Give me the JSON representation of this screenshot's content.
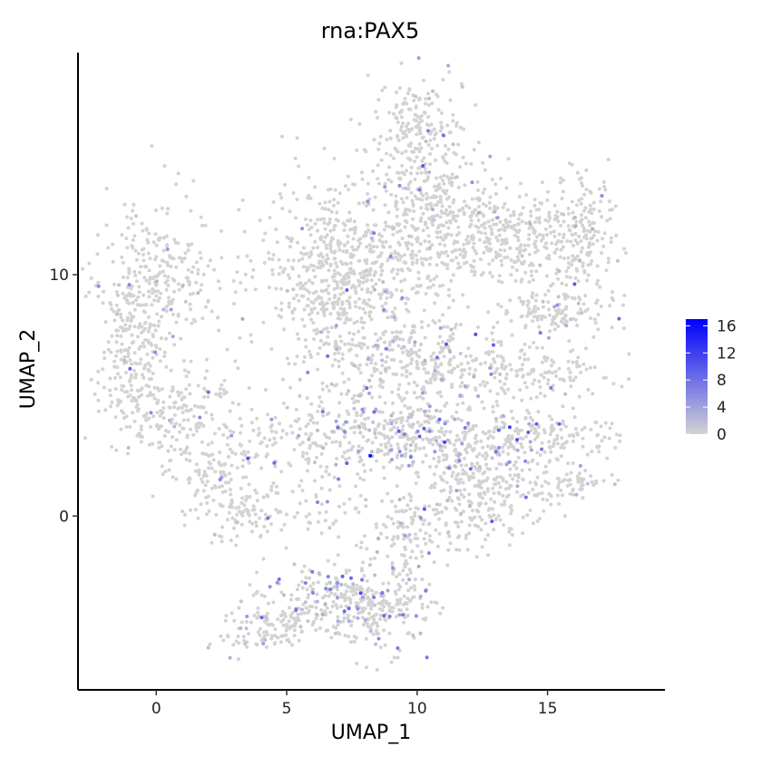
{
  "chart_data": {
    "type": "scatter",
    "title": "rna:PAX5",
    "xlabel": "UMAP_1",
    "ylabel": "UMAP_2",
    "xlim": [
      -3,
      19.5
    ],
    "ylim": [
      -7.2,
      19.2
    ],
    "x_ticks": [
      0,
      5,
      10,
      15
    ],
    "y_ticks": [
      0,
      10
    ],
    "grid": false,
    "legend_placement": "right",
    "colorbar": {
      "ticks": [
        0,
        4,
        8,
        12,
        16
      ],
      "min": 0,
      "max": 17,
      "low_color": "#d3d3d3",
      "high_color": "#0000ff"
    },
    "clusters": [
      {
        "cx": 0.1,
        "cy": 10.0,
        "sx": 1.3,
        "sy": 1.4,
        "n": 260,
        "expr": 0.03
      },
      {
        "cx": -0.9,
        "cy": 7.0,
        "sx": 0.6,
        "sy": 1.5,
        "n": 160,
        "expr": 0.03
      },
      {
        "cx": 0.5,
        "cy": 4.3,
        "sx": 1.3,
        "sy": 0.9,
        "n": 200,
        "expr": 0.05
      },
      {
        "cx": 2.3,
        "cy": 1.8,
        "sx": 1.1,
        "sy": 0.9,
        "n": 130,
        "expr": 0.03
      },
      {
        "cx": 3.4,
        "cy": 0.0,
        "sx": 0.8,
        "sy": 0.5,
        "n": 60,
        "expr": 0.02
      },
      {
        "cx": 6.3,
        "cy": 0.2,
        "sx": 1.6,
        "sy": 0.7,
        "n": 70,
        "expr": 0.12
      },
      {
        "cx": 7.2,
        "cy": 10.0,
        "sx": 1.6,
        "sy": 2.0,
        "n": 700,
        "expr": 0.01
      },
      {
        "cx": 10.0,
        "cy": 15.8,
        "sx": 0.9,
        "sy": 1.4,
        "n": 230,
        "expr": 0.02
      },
      {
        "cx": 11.2,
        "cy": 12.0,
        "sx": 1.3,
        "sy": 1.4,
        "n": 320,
        "expr": 0.05
      },
      {
        "cx": 14.0,
        "cy": 11.5,
        "sx": 1.2,
        "sy": 1.0,
        "n": 220,
        "expr": 0.04
      },
      {
        "cx": 16.3,
        "cy": 11.5,
        "sx": 0.7,
        "sy": 1.2,
        "n": 160,
        "expr": 0.02
      },
      {
        "cx": 15.3,
        "cy": 8.5,
        "sx": 1.1,
        "sy": 0.5,
        "n": 130,
        "expr": 0.03
      },
      {
        "cx": 14.2,
        "cy": 5.8,
        "sx": 1.5,
        "sy": 0.6,
        "n": 130,
        "expr": 0.03
      },
      {
        "cx": 10.2,
        "cy": 6.5,
        "sx": 1.6,
        "sy": 1.0,
        "n": 280,
        "expr": 0.12
      },
      {
        "cx": 8.5,
        "cy": 3.4,
        "sx": 2.4,
        "sy": 0.9,
        "n": 450,
        "expr": 0.16
      },
      {
        "cx": 13.2,
        "cy": 3.2,
        "sx": 1.5,
        "sy": 0.6,
        "n": 160,
        "expr": 0.08
      },
      {
        "cx": 16.0,
        "cy": 3.3,
        "sx": 0.9,
        "sy": 0.3,
        "n": 50,
        "expr": 0.02
      },
      {
        "cx": 16.2,
        "cy": 1.4,
        "sx": 0.9,
        "sy": 0.3,
        "n": 50,
        "expr": 0.02
      },
      {
        "cx": 12.5,
        "cy": 0.8,
        "sx": 1.5,
        "sy": 1.1,
        "n": 300,
        "expr": 0.06
      },
      {
        "cx": 9.6,
        "cy": -1.0,
        "sx": 0.5,
        "sy": 1.4,
        "n": 100,
        "expr": 0.12
      },
      {
        "cx": 8.4,
        "cy": -3.8,
        "sx": 1.0,
        "sy": 0.9,
        "n": 220,
        "expr": 0.18
      },
      {
        "cx": 6.6,
        "cy": -3.2,
        "sx": 1.3,
        "sy": 0.6,
        "n": 130,
        "expr": 0.14
      },
      {
        "cx": 5.0,
        "cy": -4.3,
        "sx": 1.0,
        "sy": 0.4,
        "n": 90,
        "expr": 0.1
      },
      {
        "cx": 4.2,
        "cy": -5.1,
        "sx": 0.8,
        "sy": 0.3,
        "n": 50,
        "expr": 0.06
      }
    ]
  }
}
